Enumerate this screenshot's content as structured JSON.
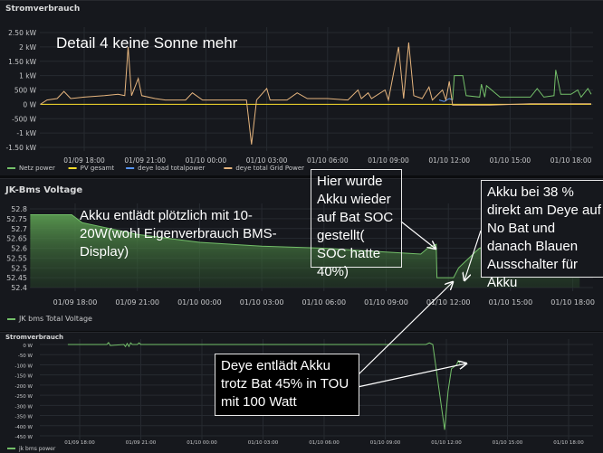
{
  "panels": {
    "power_title": "Stromverbrauch",
    "voltage_title": "JK-Bms Voltage",
    "bms_power_title": "Stromverbrauch"
  },
  "annotations": {
    "detail": "Detail 4 keine Sonne mehr",
    "discharge": "Akku entlädt plötzlich mit 10-20W(wohl Eigenverbrauch BMS-Display)",
    "soc_reset": "Hier wurde Akku wieder auf Bat SOC gestellt( SOC hatte 40%)",
    "akku38": "Akku bei 38 % direkt am Deye auf No Bat und danach Blauen Ausschalter für Akku",
    "deye": "Deye entlädt Akku trotz Bat 45% in TOU mit 100 Watt"
  },
  "chart_data": [
    {
      "type": "line",
      "title": "Stromverbrauch",
      "yticks": [
        "2.50 kW",
        "2 kW",
        "1.50 kW",
        "1 kW",
        "500 W",
        "0 W",
        "-500 W",
        "-1 kW",
        "-1.50 kW"
      ],
      "ylim": [
        -1500,
        2500
      ],
      "xticks": [
        "01/09 18:00",
        "01/09 21:00",
        "01/10 00:00",
        "01/10 03:00",
        "01/10 06:00",
        "01/10 09:00",
        "01/10 12:00",
        "01/10 15:00",
        "01/10 18:00"
      ],
      "grid": true,
      "legend": "bottom-left",
      "series": [
        {
          "name": "Netz power",
          "color": "#73bf69",
          "x": [
            "01/10 12:10",
            "01/10 12:15",
            "01/10 12:40",
            "01/10 12:50",
            "01/10 13:30",
            "01/10 13:35",
            "01/10 13:45",
            "01/10 13:50",
            "01/10 14:30",
            "01/10 15:00",
            "01/10 16:00",
            "01/10 16:20",
            "01/10 16:40",
            "01/10 17:10",
            "01/10 17:15",
            "01/10 17:30",
            "01/10 18:00",
            "01/10 18:20",
            "01/10 18:30",
            "01/10 18:50",
            "01/10 19:00"
          ],
          "y": [
            150,
            1000,
            1000,
            300,
            250,
            700,
            250,
            650,
            250,
            250,
            250,
            550,
            250,
            300,
            1200,
            350,
            350,
            500,
            250,
            550,
            350
          ]
        },
        {
          "name": "PV gesamt",
          "color": "#fade2a",
          "x": [
            "01/09 15:50",
            "01/10 19:00"
          ],
          "y": [
            0,
            0
          ]
        },
        {
          "name": "deye load totalpower",
          "color": "#5794f2",
          "x": [
            "01/10 11:30",
            "01/10 11:45",
            "01/10 12:00",
            "01/10 12:10"
          ],
          "y": [
            150,
            100,
            200,
            150
          ]
        },
        {
          "name": "deye total Grid Power",
          "color": "#e6b57e",
          "x": [
            "01/09 15:50",
            "01/09 16:10",
            "01/09 16:40",
            "01/09 17:00",
            "01/09 17:20",
            "01/09 18:00",
            "01/09 19:00",
            "01/09 19:40",
            "01/09 20:00",
            "01/09 20:10",
            "01/09 20:20",
            "01/09 20:40",
            "01/09 20:50",
            "01/09 21:30",
            "01/09 22:00",
            "01/09 23:00",
            "01/09 23:20",
            "01/09 23:50",
            "01/10 01:00",
            "01/10 02:00",
            "01/10 02:15",
            "01/10 02:30",
            "01/10 03:00",
            "01/10 03:10",
            "01/10 04:00",
            "01/10 04:30",
            "01/10 05:00",
            "01/10 06:00",
            "01/10 07:00",
            "01/10 07:30",
            "01/10 07:40",
            "01/10 08:00",
            "01/10 08:10",
            "01/10 08:50",
            "01/10 09:00",
            "01/10 09:30",
            "01/10 09:45",
            "01/10 10:00",
            "01/10 10:15",
            "01/10 10:40",
            "01/10 11:00",
            "01/10 11:10",
            "01/10 11:40",
            "01/10 11:50",
            "01/10 12:00",
            "01/10 12:10",
            "01/10 14:00",
            "01/10 16:00",
            "01/10 19:00"
          ],
          "y": [
            0,
            150,
            200,
            450,
            200,
            250,
            300,
            350,
            300,
            2000,
            300,
            900,
            300,
            200,
            150,
            150,
            400,
            150,
            150,
            150,
            -1400,
            150,
            550,
            150,
            150,
            400,
            200,
            200,
            150,
            500,
            200,
            400,
            200,
            500,
            150,
            2000,
            200,
            2150,
            300,
            200,
            600,
            150,
            500,
            150,
            800,
            -30,
            -30,
            20,
            20
          ]
        }
      ]
    },
    {
      "type": "area",
      "title": "JK-Bms Voltage",
      "yticks": [
        "52.8",
        "52.75",
        "52.7",
        "52.65",
        "52.6",
        "52.55",
        "52.5",
        "52.45",
        "52.4"
      ],
      "ylim": [
        52.4,
        52.8
      ],
      "xticks": [
        "01/09 18:00",
        "01/09 21:00",
        "01/10 00:00",
        "01/10 03:00",
        "01/10 06:00",
        "01/10 09:00",
        "01/10 12:00",
        "01/10 15:00",
        "01/10 18:00"
      ],
      "grid": true,
      "legend": "bottom-left",
      "series": [
        {
          "name": "JK bms Total Voltage",
          "color": "#73bf69",
          "x": [
            "01/09 15:50",
            "01/09 17:50",
            "01/09 18:20",
            "01/09 21:00",
            "01/10 00:00",
            "01/10 03:00",
            "01/10 06:00",
            "01/10 09:00",
            "01/10 10:40",
            "01/10 11:00",
            "01/10 11:25",
            "01/10 11:27",
            "01/10 12:15",
            "01/10 12:30",
            "01/10 13:30",
            "01/10 15:00",
            "01/10 18:20"
          ],
          "y": [
            52.77,
            52.77,
            52.73,
            52.67,
            52.63,
            52.61,
            52.6,
            52.58,
            52.57,
            52.6,
            52.62,
            52.45,
            52.45,
            52.5,
            52.6,
            52.64,
            52.67
          ]
        }
      ]
    },
    {
      "type": "line",
      "title": "Stromverbrauch",
      "yticks": [
        "0 W",
        "-50 W",
        "-100 W",
        "-150 W",
        "-200 W",
        "-250 W",
        "-300 W",
        "-350 W",
        "-400 W",
        "-450 W"
      ],
      "ylim": [
        -450,
        0
      ],
      "xticks": [
        "01/09 18:00",
        "01/09 21:00",
        "01/10 00:00",
        "01/10 03:00",
        "01/10 06:00",
        "01/10 09:00",
        "01/10 12:00",
        "01/10 15:00",
        "01/10 18:00"
      ],
      "grid": true,
      "legend": "bottom-left",
      "series": [
        {
          "name": "jk bms power",
          "color": "#73bf69",
          "x": [
            "01/09 17:25",
            "01/09 19:20",
            "01/09 19:25",
            "01/09 19:30",
            "01/09 20:10",
            "01/09 20:15",
            "01/09 20:20",
            "01/09 20:25",
            "01/09 20:30",
            "01/09 20:35",
            "01/09 20:50",
            "01/09 20:55",
            "01/09 21:00",
            "01/10 11:00",
            "01/10 11:10",
            "01/10 11:20",
            "01/10 11:55",
            "01/10 12:05",
            "01/10 12:15",
            "01/10 12:30",
            "01/10 12:35",
            "01/10 12:40"
          ],
          "y": [
            0,
            0,
            10,
            -5,
            0,
            -10,
            5,
            -10,
            8,
            0,
            0,
            8,
            0,
            0,
            8,
            0,
            -420,
            -230,
            -120,
            -100,
            -80,
            -95
          ]
        }
      ]
    }
  ]
}
